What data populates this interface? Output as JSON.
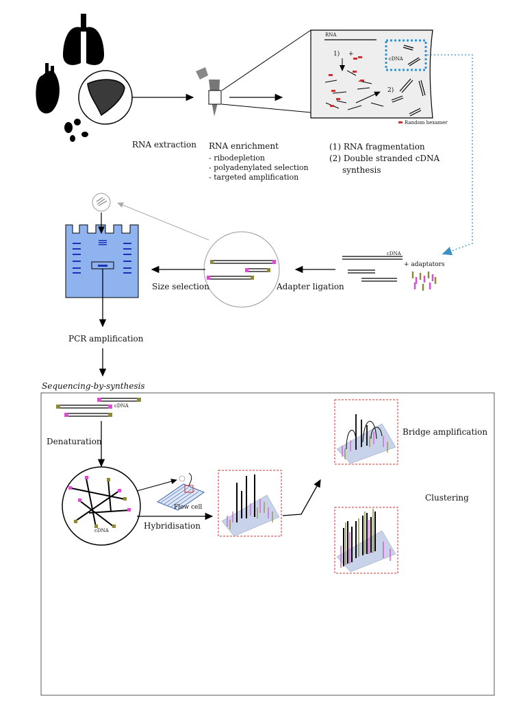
{
  "steps": {
    "rna_extraction": "RNA extraction",
    "rna_enrichment": {
      "title": "RNA enrichment",
      "items": [
        "- ribodepletion",
        "- polyadenylated selection",
        "- targeted amplification"
      ]
    },
    "fragmentation": {
      "line1": "(1) RNA fragmentation",
      "line2": "(2) Double stranded cDNA",
      "line3": "synthesis"
    },
    "adapter_ligation": "Adapter ligation",
    "adaptators": "+ adaptators",
    "size_selection": "Size selection",
    "pcr_amplification": "PCR amplification",
    "sequencing_by_synthesis": "Sequencing-by-synthesis",
    "denaturation": "Denaturation",
    "hybridisation": "Hybridisation",
    "bridge_amplification": "Bridge amplification",
    "clustering": "Clustering",
    "flow_cell": "Flow cell"
  },
  "zoom_box": {
    "rna_label": "RNA",
    "cdna_label": "cDNA",
    "step1": "1)",
    "step2": "2)",
    "plus": "+",
    "legend_random_hexamer": "Random hexamer"
  },
  "cdna_labels": {
    "adapters_top": "cDNA",
    "denaturation_top": "cDNA",
    "denaturation_circle": "cDNA"
  },
  "colors": {
    "gel_blue": "#8fb3ee",
    "band_blue": "#1c2fb5",
    "adapter_pink": "#d94fd0",
    "adapter_olive": "#8c8a3a",
    "hexamer_red": "#d22b2b",
    "dotted_arrow_blue": "#3a8fc7",
    "cluster_box_red": "#d22b2b"
  }
}
